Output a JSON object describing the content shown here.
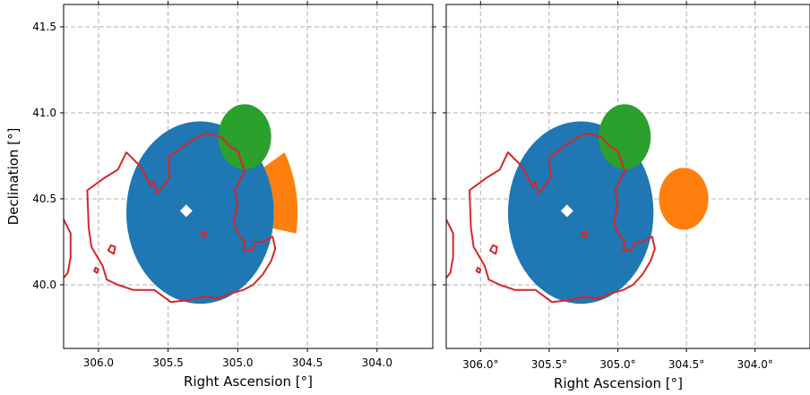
{
  "chart_data": [
    {
      "type": "sky-map",
      "xlabel": "Right Ascension [°]",
      "ylabel": "Declination [°]",
      "xlim": [
        306.25,
        303.6
      ],
      "ylim": [
        39.63,
        41.63
      ],
      "grid": true,
      "x_ticks": [
        "306.0",
        "305.5",
        "305.0",
        "304.5",
        "304.0"
      ],
      "x_tick_values": [
        306.0,
        305.5,
        305.0,
        304.5,
        304.0
      ],
      "y_ticks": [
        "40.0",
        "40.5",
        "41.0",
        "41.5"
      ],
      "y_tick_values": [
        40.0,
        40.5,
        41.0,
        41.5
      ],
      "colors": {
        "blue": "#1f77b4",
        "green": "#2ca02c",
        "orange": "#ff7f0e",
        "contour": "#d62728",
        "marker": "#ffffff"
      },
      "regions": [
        {
          "shape": "circle",
          "color": "blue",
          "ra": 305.27,
          "dec": 40.42,
          "radius_deg": 0.53
        },
        {
          "shape": "circle",
          "color": "green",
          "ra": 304.95,
          "dec": 40.86,
          "radius_deg": 0.19
        },
        {
          "shape": "wedge",
          "color": "orange",
          "ra": 305.27,
          "dec": 40.42,
          "r_inner_deg": 0.53,
          "r_outer_deg": 0.7,
          "angle_start_deg": -10,
          "angle_end_deg": 30
        }
      ],
      "marker": {
        "ra": 305.37,
        "dec": 40.43,
        "shape": "diamond"
      }
    },
    {
      "type": "sky-map",
      "xlabel": "Right Ascension [°]",
      "ylabel": "",
      "xlim": [
        306.25,
        303.6
      ],
      "ylim": [
        39.63,
        41.63
      ],
      "grid": true,
      "x_ticks": [
        "306.0°",
        "305.5°",
        "305.0°",
        "304.5°",
        "304.0°"
      ],
      "x_tick_values": [
        306.0,
        305.5,
        305.0,
        304.5,
        304.0
      ],
      "y_ticks": [],
      "y_tick_values": [
        40.0,
        40.5,
        41.0,
        41.5
      ],
      "colors": {
        "blue": "#1f77b4",
        "green": "#2ca02c",
        "orange": "#ff7f0e",
        "contour": "#d62728",
        "marker": "#ffffff"
      },
      "regions": [
        {
          "shape": "circle",
          "color": "blue",
          "ra": 305.27,
          "dec": 40.42,
          "radius_deg": 0.53
        },
        {
          "shape": "circle",
          "color": "green",
          "ra": 304.95,
          "dec": 40.86,
          "radius_deg": 0.19
        },
        {
          "shape": "circle",
          "color": "orange",
          "ra": 304.52,
          "dec": 40.5,
          "radius_deg": 0.18
        }
      ],
      "marker": {
        "ra": 305.37,
        "dec": 40.43,
        "shape": "diamond"
      }
    }
  ],
  "contours": {
    "main": [
      [
        306.07,
        40.33
      ],
      [
        306.08,
        40.55
      ],
      [
        305.96,
        40.62
      ],
      [
        305.86,
        40.67
      ],
      [
        305.8,
        40.77
      ],
      [
        305.7,
        40.69
      ],
      [
        305.62,
        40.57
      ],
      [
        305.6,
        40.6
      ],
      [
        305.58,
        40.53
      ],
      [
        305.49,
        40.62
      ],
      [
        305.5,
        40.74
      ],
      [
        305.4,
        40.8
      ],
      [
        305.29,
        40.86
      ],
      [
        305.22,
        40.88
      ],
      [
        305.12,
        40.86
      ],
      [
        305.05,
        40.8
      ],
      [
        305.0,
        40.78
      ],
      [
        304.95,
        40.66
      ],
      [
        305.02,
        40.55
      ],
      [
        305.0,
        40.46
      ],
      [
        305.03,
        40.37
      ],
      [
        305.0,
        40.3
      ],
      [
        304.95,
        40.25
      ],
      [
        304.96,
        40.2
      ],
      [
        304.9,
        40.2
      ],
      [
        304.87,
        40.25
      ],
      [
        304.82,
        40.25
      ],
      [
        304.75,
        40.28
      ],
      [
        304.73,
        40.21
      ],
      [
        304.76,
        40.14
      ],
      [
        304.82,
        40.06
      ],
      [
        304.89,
        40.0
      ],
      [
        304.96,
        39.97
      ],
      [
        305.05,
        39.95
      ],
      [
        305.14,
        39.92
      ],
      [
        305.24,
        39.93
      ],
      [
        305.36,
        39.91
      ],
      [
        305.48,
        39.9
      ],
      [
        305.6,
        39.97
      ],
      [
        305.75,
        39.97
      ],
      [
        305.86,
        40.0
      ],
      [
        305.94,
        40.03
      ],
      [
        305.97,
        40.11
      ],
      [
        306.05,
        40.22
      ]
    ],
    "small": [
      [
        305.26,
        40.3
      ],
      [
        305.23,
        40.31
      ],
      [
        305.23,
        40.28
      ],
      [
        305.26,
        40.28
      ]
    ],
    "edge_left": [
      [
        306.25,
        40.38
      ],
      [
        306.2,
        40.3
      ],
      [
        306.2,
        40.16
      ],
      [
        306.22,
        40.07
      ],
      [
        306.25,
        40.04
      ]
    ],
    "dot_a": [
      [
        305.93,
        40.2
      ],
      [
        305.91,
        40.23
      ],
      [
        305.88,
        40.22
      ],
      [
        305.89,
        40.18
      ]
    ],
    "dot_b": [
      [
        306.03,
        40.08
      ],
      [
        306.02,
        40.1
      ],
      [
        306.0,
        40.09
      ],
      [
        306.01,
        40.07
      ]
    ]
  }
}
